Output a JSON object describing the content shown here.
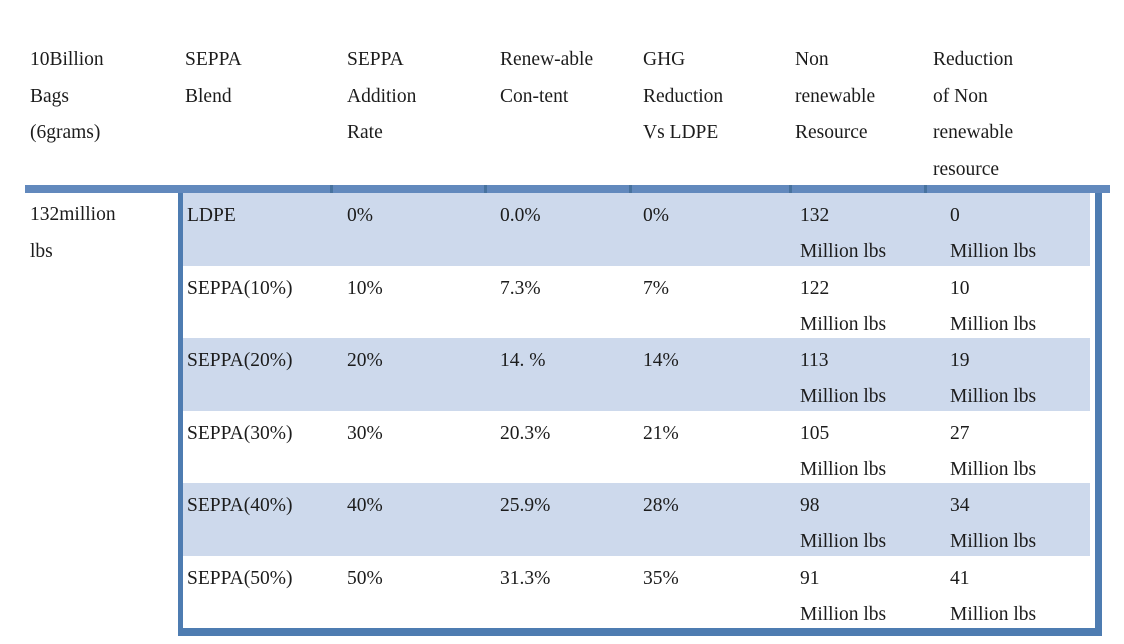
{
  "colors": {
    "border_blue": "#4e7cb1",
    "topbar_blue": "#6289bd",
    "tick_blue": "#48739f",
    "band_fill": "#cdd9ec",
    "text": "#1c1c1c"
  },
  "table": {
    "columns": [
      {
        "name": "bags",
        "header_lines": [
          "10Billion",
          "Bags",
          "(6grams)"
        ]
      },
      {
        "name": "seppa-blend",
        "header_lines": [
          "SEPPA",
          "Blend"
        ]
      },
      {
        "name": "seppa-addition-rate",
        "header_lines": [
          "SEPPA",
          "Addition",
          "Rate"
        ]
      },
      {
        "name": "renewable-content",
        "header_lines": [
          "Renew-able",
          "Con-tent"
        ]
      },
      {
        "name": "ghg-reduction-vs-ldpe",
        "header_lines": [
          "GHG",
          "Reduction",
          "Vs LDPE"
        ]
      },
      {
        "name": "non-renewable-resource",
        "header_lines": [
          "Non",
          "renewable",
          "Resource"
        ]
      },
      {
        "name": "reduction-of-non-renewable",
        "header_lines": [
          "Reduction",
          "of Non",
          "renewable",
          "resource"
        ]
      }
    ],
    "row_label_lines": [
      "132million",
      "lbs"
    ],
    "rows": [
      {
        "blend": "LDPE",
        "addition_rate": "0%",
        "renewable_content": "0.0%",
        "ghg_reduction": "0%",
        "non_renewable": [
          "132",
          "Million lbs"
        ],
        "reduction": [
          "0",
          "Million lbs"
        ]
      },
      {
        "blend": "SEPPA(10%)",
        "addition_rate": "10%",
        "renewable_content": "7.3%",
        "ghg_reduction": "7%",
        "non_renewable": [
          "122",
          "Million lbs"
        ],
        "reduction": [
          "10",
          "Million lbs"
        ]
      },
      {
        "blend": "SEPPA(20%)",
        "addition_rate": "20%",
        "renewable_content": "14. %",
        "ghg_reduction": "14%",
        "non_renewable": [
          "113",
          "Million lbs"
        ],
        "reduction": [
          "19",
          "Million lbs"
        ]
      },
      {
        "blend": "SEPPA(30%)",
        "addition_rate": "30%",
        "renewable_content": "20.3%",
        "ghg_reduction": "21%",
        "non_renewable": [
          "105",
          "Million lbs"
        ],
        "reduction": [
          "27",
          "Million lbs"
        ]
      },
      {
        "blend": "SEPPA(40%)",
        "addition_rate": "40%",
        "renewable_content": "25.9%",
        "ghg_reduction": "28%",
        "non_renewable": [
          "98",
          "Million lbs"
        ],
        "reduction": [
          "34",
          "Million lbs"
        ]
      },
      {
        "blend": "SEPPA(50%)",
        "addition_rate": "50%",
        "renewable_content": "31.3%",
        "ghg_reduction": "35%",
        "non_renewable": [
          "91",
          "Million lbs"
        ],
        "reduction": [
          "41",
          "Million lbs"
        ]
      }
    ]
  }
}
